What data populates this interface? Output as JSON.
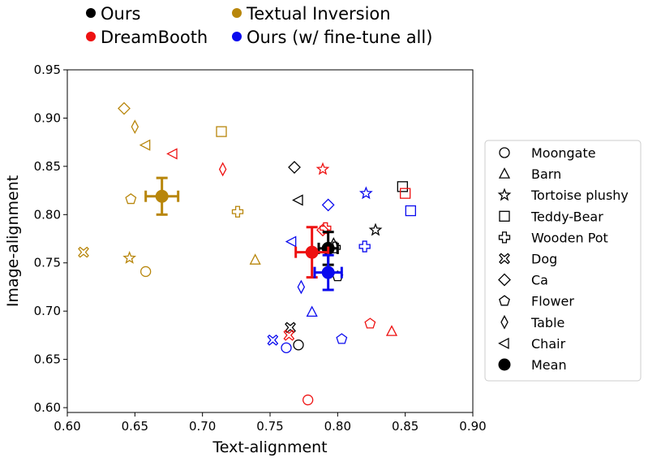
{
  "chart_data": {
    "type": "scatter",
    "title": "",
    "xlabel": "Text-alignment",
    "ylabel": "Image-alignment",
    "xlim": [
      0.6,
      0.9
    ],
    "ylim": [
      0.595,
      0.95
    ],
    "xticks": [
      0.6,
      0.65,
      0.7,
      0.75,
      0.8,
      0.85,
      0.9
    ],
    "yticks": [
      0.6,
      0.65,
      0.7,
      0.75,
      0.8,
      0.85,
      0.9,
      0.95
    ],
    "grid": false,
    "colors": {
      "Ours": "#000000",
      "DreamBooth": "#ee1111",
      "Textual Inversion": "#b8860b",
      "Ours (w/ fine-tune all)": "#0a0aee"
    },
    "method_legend": {
      "placement": "top",
      "entries": [
        "Ours",
        "Textual Inversion",
        "DreamBooth",
        "Ours (w/ fine-tune all)"
      ]
    },
    "marker_legend": {
      "placement": "right",
      "entries": [
        {
          "label": "Moongate",
          "marker": "circle"
        },
        {
          "label": "Barn",
          "marker": "triangle-up"
        },
        {
          "label": "Tortoise plushy",
          "marker": "star"
        },
        {
          "label": "Teddy-Bear",
          "marker": "square"
        },
        {
          "label": "Wooden Pot",
          "marker": "plus"
        },
        {
          "label": "Dog",
          "marker": "x"
        },
        {
          "label": "Ca",
          "marker": "diamond"
        },
        {
          "label": "Flower",
          "marker": "pentagon"
        },
        {
          "label": "Table",
          "marker": "thin-diamond"
        },
        {
          "label": "Chair",
          "marker": "triangle-left"
        },
        {
          "label": "Mean",
          "marker": "filled-circle"
        }
      ]
    },
    "series": [
      {
        "name": "Ours",
        "points": [
          {
            "category": "Moongate",
            "x": 0.771,
            "y": 0.665
          },
          {
            "category": "Barn",
            "x": 0.797,
            "y": 0.77
          },
          {
            "category": "Tortoise plushy",
            "x": 0.828,
            "y": 0.784
          },
          {
            "category": "Teddy-Bear",
            "x": 0.848,
            "y": 0.829
          },
          {
            "category": "Wooden Pot",
            "x": 0.798,
            "y": 0.766
          },
          {
            "category": "Dog",
            "x": 0.765,
            "y": 0.683
          },
          {
            "category": "Ca",
            "x": 0.768,
            "y": 0.849
          },
          {
            "category": "Flower",
            "x": 0.8,
            "y": 0.736
          },
          {
            "category": "Chair",
            "x": 0.771,
            "y": 0.815
          }
        ],
        "mean": {
          "x": 0.793,
          "y": 0.765,
          "xerr": 0.007,
          "yerr": 0.017
        }
      },
      {
        "name": "DreamBooth",
        "points": [
          {
            "category": "Moongate",
            "x": 0.778,
            "y": 0.608
          },
          {
            "category": "Barn",
            "x": 0.84,
            "y": 0.679
          },
          {
            "category": "Tortoise plushy",
            "x": 0.789,
            "y": 0.847
          },
          {
            "category": "Teddy-Bear",
            "x": 0.85,
            "y": 0.822
          },
          {
            "category": "Wooden Pot",
            "x": 0.791,
            "y": 0.786
          },
          {
            "category": "Dog",
            "x": 0.764,
            "y": 0.675
          },
          {
            "category": "Ca",
            "x": 0.789,
            "y": 0.784
          },
          {
            "category": "Flower",
            "x": 0.824,
            "y": 0.687
          },
          {
            "category": "Table",
            "x": 0.715,
            "y": 0.847
          },
          {
            "category": "Chair",
            "x": 0.678,
            "y": 0.863
          }
        ],
        "mean": {
          "x": 0.781,
          "y": 0.761,
          "xerr": 0.012,
          "yerr": 0.026
        }
      },
      {
        "name": "Textual Inversion",
        "points": [
          {
            "category": "Moongate",
            "x": 0.658,
            "y": 0.741
          },
          {
            "category": "Barn",
            "x": 0.739,
            "y": 0.753
          },
          {
            "category": "Tortoise plushy",
            "x": 0.646,
            "y": 0.755
          },
          {
            "category": "Teddy-Bear",
            "x": 0.714,
            "y": 0.886
          },
          {
            "category": "Wooden Pot",
            "x": 0.726,
            "y": 0.803
          },
          {
            "category": "Dog",
            "x": 0.612,
            "y": 0.761
          },
          {
            "category": "Ca",
            "x": 0.642,
            "y": 0.91
          },
          {
            "category": "Flower",
            "x": 0.647,
            "y": 0.816
          },
          {
            "category": "Table",
            "x": 0.65,
            "y": 0.891
          },
          {
            "category": "Chair",
            "x": 0.658,
            "y": 0.872
          }
        ],
        "mean": {
          "x": 0.67,
          "y": 0.819,
          "xerr": 0.012,
          "yerr": 0.019
        }
      },
      {
        "name": "Ours (w/ fine-tune all)",
        "points": [
          {
            "category": "Moongate",
            "x": 0.762,
            "y": 0.662
          },
          {
            "category": "Barn",
            "x": 0.781,
            "y": 0.699
          },
          {
            "category": "Tortoise plushy",
            "x": 0.821,
            "y": 0.822
          },
          {
            "category": "Teddy-Bear",
            "x": 0.854,
            "y": 0.804
          },
          {
            "category": "Wooden Pot",
            "x": 0.82,
            "y": 0.767
          },
          {
            "category": "Dog",
            "x": 0.752,
            "y": 0.67
          },
          {
            "category": "Ca",
            "x": 0.793,
            "y": 0.81
          },
          {
            "category": "Flower",
            "x": 0.803,
            "y": 0.671
          },
          {
            "category": "Table",
            "x": 0.773,
            "y": 0.725
          },
          {
            "category": "Chair",
            "x": 0.766,
            "y": 0.772
          }
        ],
        "mean": {
          "x": 0.793,
          "y": 0.74,
          "xerr": 0.01,
          "yerr": 0.018
        }
      }
    ]
  }
}
